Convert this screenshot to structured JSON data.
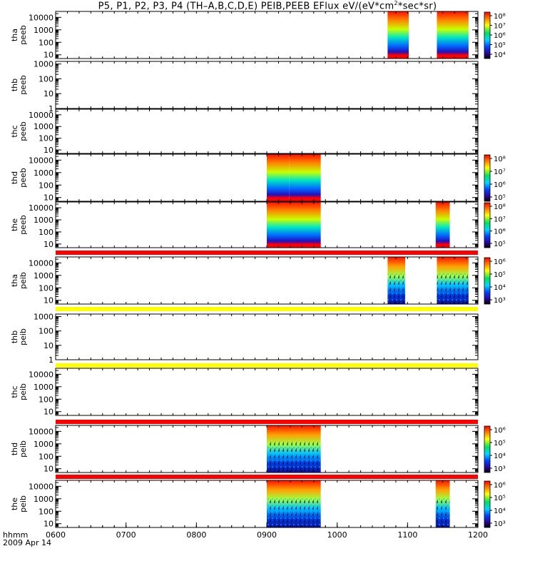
{
  "title": {
    "prefix": "P5, P1, P2, P3, P4 (TH–A,B,C,D,E) PEIB,PEEB EFlux eV/(eV*cm",
    "sup": "2",
    "suffix": "*sec*sr)"
  },
  "chart_data": {
    "type": "heatmap",
    "title": "P5, P1, P2, P3, P4 (TH–A,B,C,D,E) PEIB,PEEB EFlux eV/(eV*cm2*sec*sr)",
    "x": {
      "range": [
        "0600",
        "1200"
      ],
      "ticks": [
        "0600",
        "0700",
        "0800",
        "0900",
        "1000",
        "1100",
        "1200"
      ],
      "label": "hhmm",
      "date": "2009 Apr 14"
    },
    "y_scale": "log",
    "colormap": "rainbow (black-blue-cyan-green-yellow-red)",
    "panels": [
      {
        "line1": "tha",
        "line2": "peeb",
        "yticks": [
          "10",
          "100",
          "1000",
          "10000"
        ],
        "ylim": [
          5,
          30000
        ],
        "colorbar": [
          "10⁴",
          "10⁵",
          "10⁶",
          "10⁷",
          "10⁸"
        ],
        "intervals": [
          [
            "1043",
            "1101"
          ],
          [
            "1125",
            "1152"
          ]
        ]
      },
      {
        "line1": "thb",
        "line2": "peeb",
        "yticks": [
          "1",
          "10",
          "100",
          "1000"
        ],
        "ylim": [
          1,
          1500
        ],
        "colorbar": [],
        "intervals": []
      },
      {
        "line1": "thc",
        "line2": "peeb",
        "yticks": [
          "10",
          "100",
          "1000",
          "10000"
        ],
        "ylim": [
          5,
          30000
        ],
        "colorbar": [],
        "intervals": []
      },
      {
        "line1": "thd",
        "line2": "peeb",
        "yticks": [
          "10",
          "100",
          "1000",
          "10000"
        ],
        "ylim": [
          5,
          30000
        ],
        "colorbar": [
          "10⁵",
          "10⁶",
          "10⁷",
          "10⁸"
        ],
        "intervals": [
          [
            "0900",
            "0919"
          ],
          [
            "0919",
            "0946"
          ]
        ]
      },
      {
        "line1": "the",
        "line2": "peeb",
        "yticks": [
          "10",
          "100",
          "1000",
          "10000"
        ],
        "ylim": [
          5,
          30000
        ],
        "colorbar": [
          "10⁵",
          "10⁶",
          "10⁷",
          "10⁸"
        ],
        "intervals": [
          [
            "0900",
            "0946"
          ],
          [
            "1124",
            "1136"
          ]
        ]
      },
      {
        "line1": "tha",
        "line2": "peib",
        "yticks": [
          "10",
          "100",
          "1000",
          "10000"
        ],
        "ylim": [
          5,
          30000
        ],
        "colorbar": [
          "10³",
          "10⁴",
          "10⁵",
          "10⁶"
        ],
        "intervals": [
          [
            "1043",
            "1058"
          ],
          [
            "1125",
            "1152"
          ]
        ]
      },
      {
        "line1": "thb",
        "line2": "peib",
        "yticks": [
          "1",
          "10",
          "100",
          "1000"
        ],
        "ylim": [
          1,
          1500
        ],
        "colorbar": [],
        "intervals": []
      },
      {
        "line1": "thc",
        "line2": "peib",
        "yticks": [
          "10",
          "100",
          "1000",
          "10000"
        ],
        "ylim": [
          5,
          30000
        ],
        "colorbar": [],
        "intervals": []
      },
      {
        "line1": "thd",
        "line2": "peib",
        "yticks": [
          "10",
          "100",
          "1000",
          "10000"
        ],
        "ylim": [
          5,
          30000
        ],
        "colorbar": [
          "10³",
          "10⁴",
          "10⁵",
          "10⁶"
        ],
        "intervals": [
          [
            "0900",
            "0946"
          ]
        ]
      },
      {
        "line1": "the",
        "line2": "peib",
        "yticks": [
          "10",
          "100",
          "1000",
          "10000"
        ],
        "ylim": [
          5,
          30000
        ],
        "colorbar": [
          "10³",
          "10⁴",
          "10⁵",
          "10⁶"
        ],
        "intervals": [
          [
            "0900",
            "0946"
          ],
          [
            "1124",
            "1136"
          ]
        ]
      }
    ],
    "status_bars": [
      {
        "after_panel": 4,
        "color": "#ff0000"
      },
      {
        "after_panel": 5,
        "color": "#ffff00"
      },
      {
        "after_panel": 6,
        "color": "#ffff00"
      },
      {
        "after_panel": 7,
        "color": "#ff0000"
      },
      {
        "after_panel": 8,
        "color": "#ff0000"
      }
    ]
  }
}
